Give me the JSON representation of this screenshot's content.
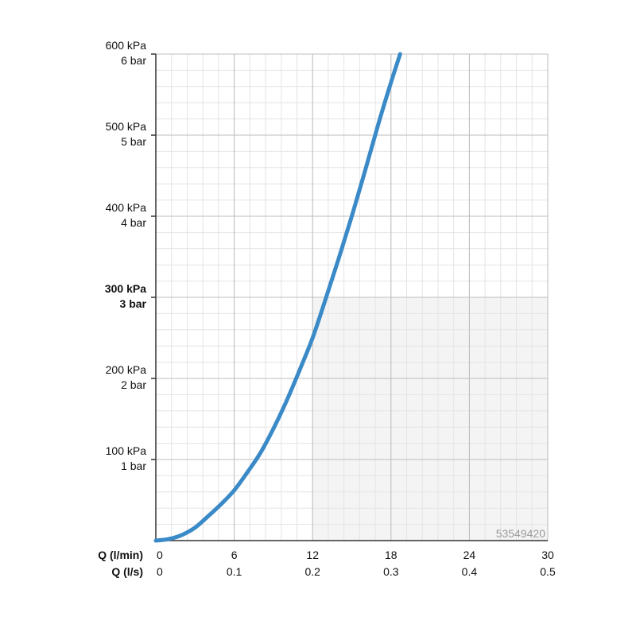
{
  "chart_data": {
    "type": "line",
    "x_axes": [
      {
        "name": "Q (l/min)",
        "ticks": [
          "0",
          "6",
          "12",
          "18",
          "24",
          "30"
        ],
        "range": [
          0,
          30
        ]
      },
      {
        "name": "Q (l/s)",
        "ticks": [
          "0",
          "0.1",
          "0.2",
          "0.3",
          "0.4",
          "0.5"
        ],
        "range": [
          0,
          0.5
        ]
      }
    ],
    "y_ticks": [
      {
        "value": 100,
        "kpa": "100 kPa",
        "bar": "1 bar",
        "bold": false
      },
      {
        "value": 200,
        "kpa": "200 kPa",
        "bar": "2 bar",
        "bold": false
      },
      {
        "value": 300,
        "kpa": "300 kPa",
        "bar": "3 bar",
        "bold": true
      },
      {
        "value": 400,
        "kpa": "400 kPa",
        "bar": "4 bar",
        "bold": false
      },
      {
        "value": 500,
        "kpa": "500 kPa",
        "bar": "5 bar",
        "bold": false
      },
      {
        "value": 600,
        "kpa": "600 kPa",
        "bar": "6 bar",
        "bold": false
      }
    ],
    "ylim": [
      0,
      600
    ],
    "xlim": [
      0,
      30
    ],
    "grid": true,
    "series": [
      {
        "color": "#3a8ac8",
        "x": [
          0,
          1,
          2,
          3,
          4,
          5,
          6,
          7,
          8,
          9,
          10,
          11,
          12,
          13,
          14,
          15,
          16,
          17,
          18,
          18.7
        ],
        "y": [
          0,
          2,
          7,
          16,
          30,
          45,
          62,
          84,
          108,
          138,
          172,
          210,
          250,
          298,
          348,
          400,
          455,
          512,
          565,
          600
        ]
      }
    ],
    "shaded_region": {
      "color": "#f4f4f4",
      "y_range": [
        0,
        300
      ],
      "x_range": [
        12,
        30
      ]
    },
    "image_id": "53549420"
  }
}
